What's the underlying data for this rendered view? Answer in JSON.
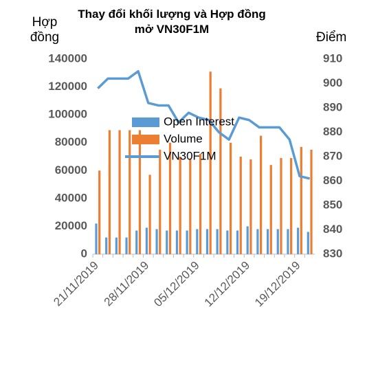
{
  "chart_data": {
    "type": "bar-line",
    "title": "Thay đổi khối lượng và Hợp đồng mở VN30F1M",
    "y_label": "Hợp đồng",
    "y2_label": "Điểm",
    "categories": [
      "21/11/2019",
      null,
      null,
      null,
      null,
      "28/11/2019",
      null,
      null,
      null,
      null,
      "05/12/2019",
      null,
      null,
      null,
      null,
      "12/12/2019",
      null,
      null,
      null,
      null,
      "19/12/2019",
      null
    ],
    "series": [
      {
        "name": "Open Interest",
        "type": "bar",
        "color": "#5b9bd5",
        "values": [
          22000,
          12000,
          12000,
          12000,
          17000,
          19000,
          18000,
          17000,
          17000,
          17000,
          18000,
          18000,
          18000,
          17000,
          17000,
          20000,
          18000,
          18000,
          18000,
          18000,
          19000,
          16000
        ]
      },
      {
        "name": "Volume",
        "type": "bar",
        "color": "#ed7d31",
        "values": [
          60000,
          89000,
          89000,
          89000,
          89000,
          57000,
          75000,
          80000,
          70000,
          68000,
          72000,
          131000,
          119000,
          80000,
          70000,
          68000,
          85000,
          64000,
          69000,
          69000,
          77000,
          75000
        ]
      },
      {
        "name": "VN30F1M",
        "type": "line",
        "axis": "y2",
        "color": "#5b9bd5",
        "values": [
          898,
          902,
          902,
          902,
          905,
          892,
          891,
          891,
          884,
          888,
          886,
          885,
          880,
          877,
          886,
          885,
          882,
          882,
          882,
          877,
          862,
          861
        ]
      }
    ],
    "ylim": [
      0,
      140000
    ],
    "yticks": [
      0,
      20000,
      40000,
      60000,
      80000,
      100000,
      120000,
      140000
    ],
    "y2lim": [
      830,
      910
    ],
    "y2ticks": [
      830,
      840,
      850,
      860,
      870,
      880,
      890,
      900,
      910
    ]
  }
}
